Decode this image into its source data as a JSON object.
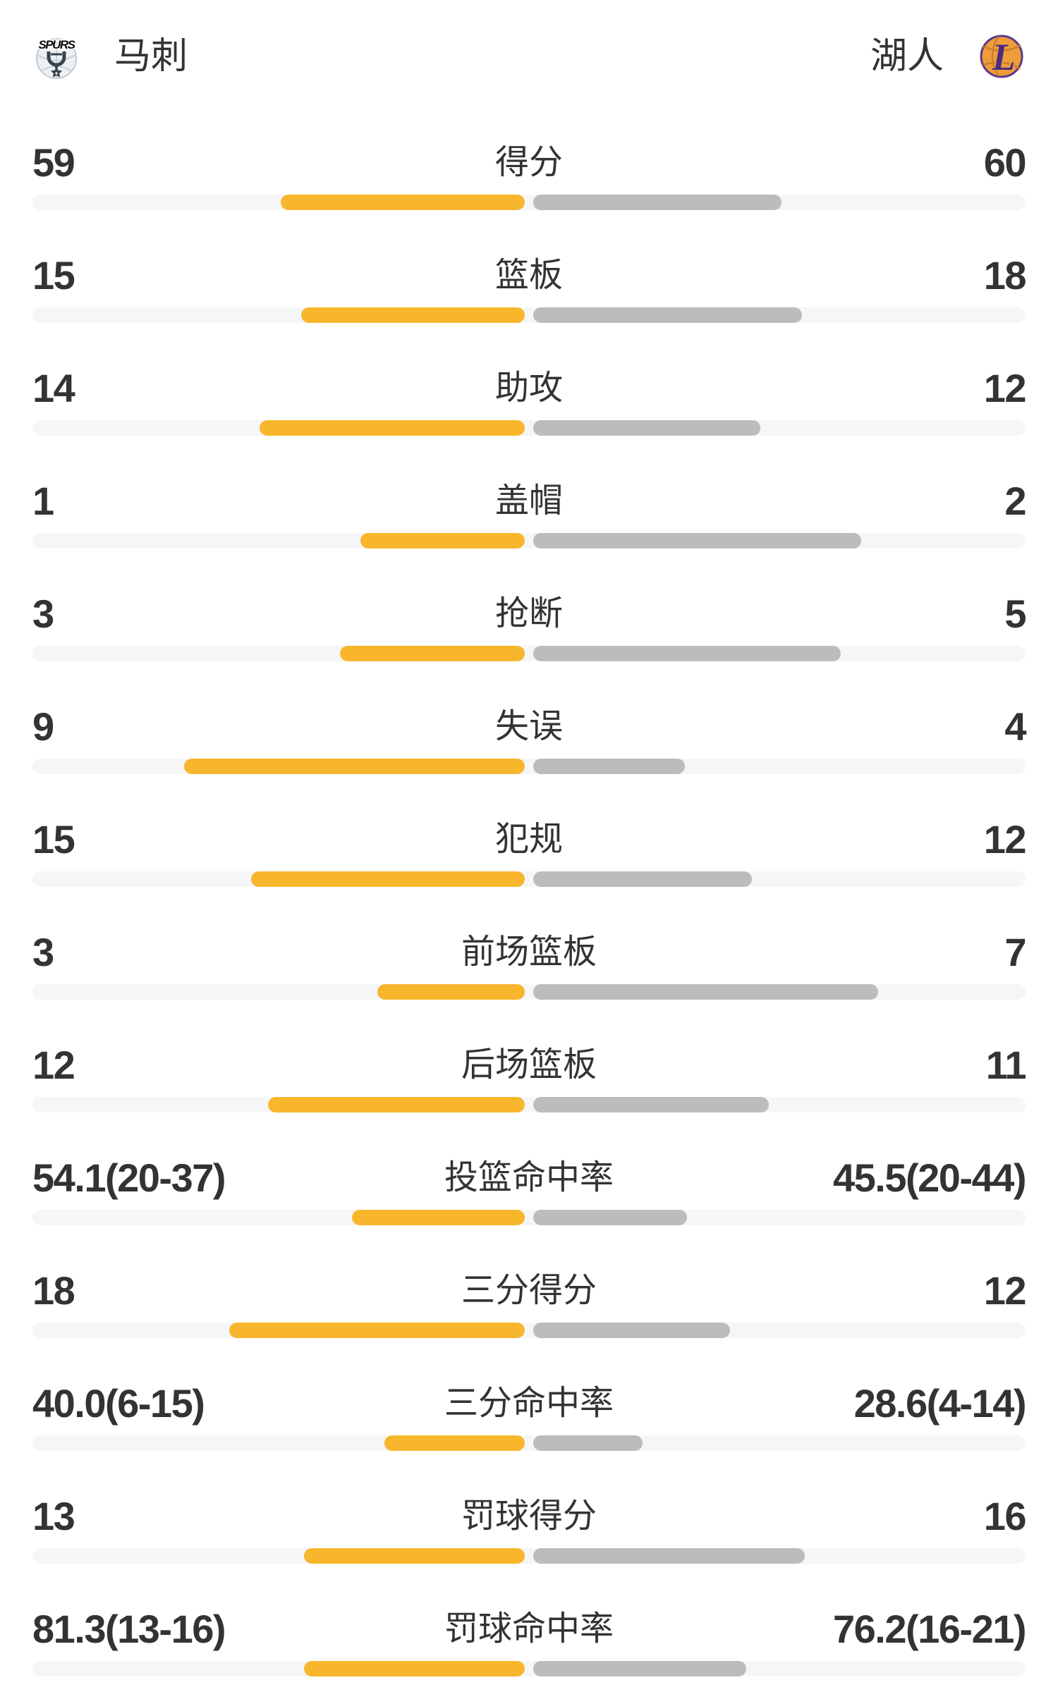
{
  "header": {
    "home": {
      "name": "马刺",
      "logo_icon": "spurs-logo"
    },
    "away": {
      "name": "湖人",
      "logo_icon": "lakers-logo"
    }
  },
  "colors": {
    "home_bar": "#F8B62D",
    "away_bar": "#BCBCBC",
    "bar_track": "#F5F6F7",
    "text": "#333333",
    "lakers_purple": "#5B3990",
    "lakers_orange": "#EF9D38",
    "spurs_dark": "#39444D"
  },
  "chart_data": {
    "type": "bar",
    "subtype": "paired-horizontal-team-comparison",
    "teams": {
      "left": "马刺",
      "right": "湖人"
    },
    "bar_colors": {
      "left": "#F8B62D",
      "right": "#BCBCBC",
      "track": "#F5F6F7"
    },
    "stats": [
      {
        "label": "得分",
        "left": "59",
        "right": "60",
        "left_value": 59,
        "right_value": 60,
        "left_frac": 0.4958,
        "right_frac": 0.5042
      },
      {
        "label": "篮板",
        "left": "15",
        "right": "18",
        "left_value": 15,
        "right_value": 18,
        "left_frac": 0.4545,
        "right_frac": 0.5455
      },
      {
        "label": "助攻",
        "left": "14",
        "right": "12",
        "left_value": 14,
        "right_value": 12,
        "left_frac": 0.5385,
        "right_frac": 0.4615
      },
      {
        "label": "盖帽",
        "left": "1",
        "right": "2",
        "left_value": 1,
        "right_value": 2,
        "left_frac": 0.3333,
        "right_frac": 0.6667
      },
      {
        "label": "抢断",
        "left": "3",
        "right": "5",
        "left_value": 3,
        "right_value": 5,
        "left_frac": 0.375,
        "right_frac": 0.625
      },
      {
        "label": "失误",
        "left": "9",
        "right": "4",
        "left_value": 9,
        "right_value": 4,
        "left_frac": 0.6923,
        "right_frac": 0.3077
      },
      {
        "label": "犯规",
        "left": "15",
        "right": "12",
        "left_value": 15,
        "right_value": 12,
        "left_frac": 0.5556,
        "right_frac": 0.4444
      },
      {
        "label": "前场篮板",
        "left": "3",
        "right": "7",
        "left_value": 3,
        "right_value": 7,
        "left_frac": 0.3,
        "right_frac": 0.7
      },
      {
        "label": "后场篮板",
        "left": "12",
        "right": "11",
        "left_value": 12,
        "right_value": 11,
        "left_frac": 0.5217,
        "right_frac": 0.4783
      },
      {
        "label": "投篮命中率",
        "left": "54.1(20-37)",
        "right": "45.5(20-44)",
        "left_value": 54.1,
        "right_value": 45.5,
        "left_made_att": "20-37",
        "right_made_att": "20-44",
        "left_frac": 0.3511,
        "right_frac": 0.3127
      },
      {
        "label": "三分得分",
        "left": "18",
        "right": "12",
        "left_value": 18,
        "right_value": 12,
        "left_frac": 0.6,
        "right_frac": 0.4
      },
      {
        "label": "三分命中率",
        "left": "40.0(6-15)",
        "right": "28.6(4-14)",
        "left_value": 40.0,
        "right_value": 28.6,
        "left_made_att": "6-15",
        "right_made_att": "4-14",
        "left_frac": 0.2857,
        "right_frac": 0.2224
      },
      {
        "label": "罚球得分",
        "left": "13",
        "right": "16",
        "left_value": 13,
        "right_value": 16,
        "left_frac": 0.4483,
        "right_frac": 0.5517
      },
      {
        "label": "罚球命中率",
        "left": "81.3(13-16)",
        "right": "76.2(16-21)",
        "left_value": 81.3,
        "right_value": 76.2,
        "left_made_att": "13-16",
        "right_made_att": "16-21",
        "left_frac": 0.4484,
        "right_frac": 0.4325
      }
    ]
  }
}
